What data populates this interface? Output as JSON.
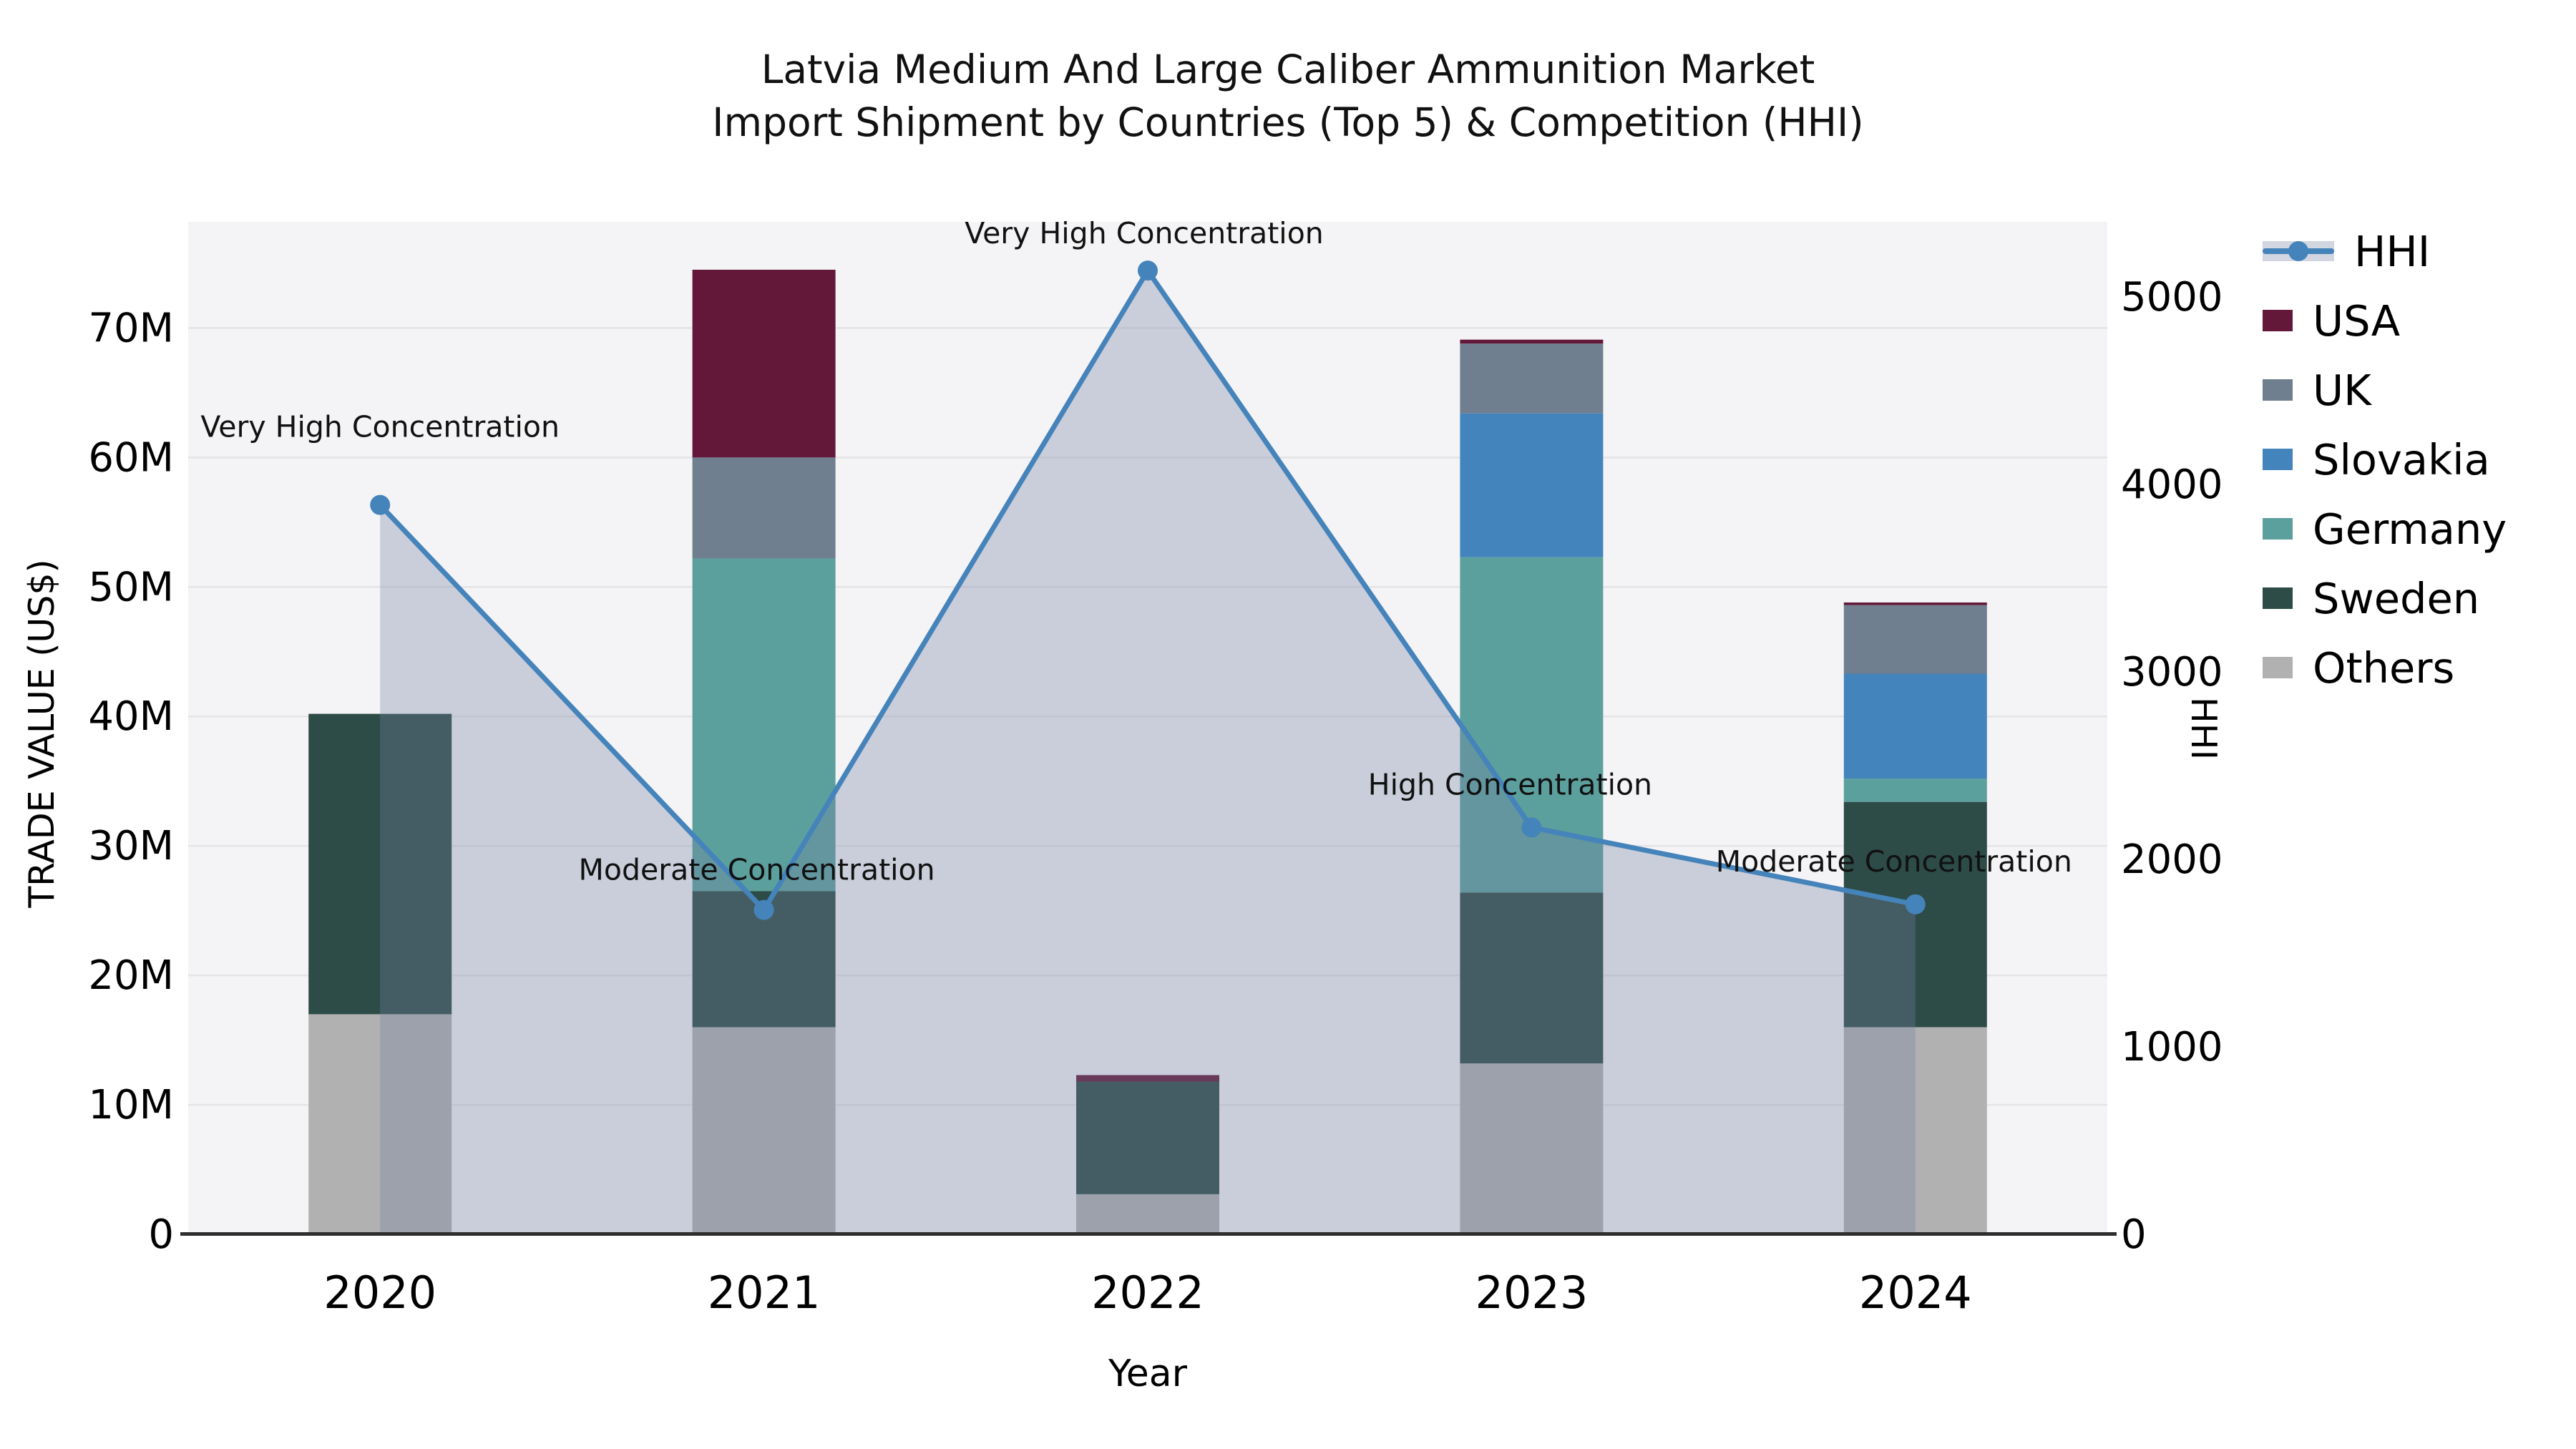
{
  "title": {
    "line1": "Latvia Medium And Large Caliber Ammunition Market",
    "line2": "Import Shipment by Countries (Top 5) & Competition (HHI)"
  },
  "axes": {
    "x_label": "Year",
    "y_left_label": "TRADE VALUE (US$)",
    "y_right_label": "HHI",
    "y_left_ticks": [
      "0",
      "10M",
      "20M",
      "30M",
      "40M",
      "50M",
      "60M",
      "70M"
    ],
    "y_right_ticks": [
      "0",
      "1000",
      "2000",
      "3000",
      "4000",
      "5000"
    ]
  },
  "legend": {
    "items": [
      {
        "label": "HHI",
        "type": "line",
        "color": "#4583bb"
      },
      {
        "label": "USA",
        "type": "patch",
        "color": "#641839"
      },
      {
        "label": "UK",
        "type": "patch",
        "color": "#6f7f90"
      },
      {
        "label": "Slovakia",
        "type": "patch",
        "color": "#4384bc"
      },
      {
        "label": "Germany",
        "type": "patch",
        "color": "#5ca09e"
      },
      {
        "label": "Sweden",
        "type": "patch",
        "color": "#2d4b47"
      },
      {
        "label": "Others",
        "type": "patch",
        "color": "#b0b1b0"
      }
    ]
  },
  "chart_data": {
    "type": "bar",
    "subtype": "stacked-bars-with-line",
    "title": "Latvia Medium And Large Caliber Ammunition Market Import Shipment by Countries (Top 5) & Competition (HHI)",
    "xlabel": "Year",
    "ylabel_left": "TRADE VALUE (US$)",
    "ylabel_right": "HHI",
    "categories": [
      "2020",
      "2021",
      "2022",
      "2023",
      "2024"
    ],
    "unit": "M US$",
    "series": [
      {
        "name": "Others",
        "color": "#b0b1b0",
        "values": [
          17.0,
          16.0,
          3.1,
          13.2,
          16.0
        ]
      },
      {
        "name": "Sweden",
        "color": "#2d4b47",
        "values": [
          23.2,
          10.5,
          8.7,
          13.2,
          17.4
        ]
      },
      {
        "name": "Germany",
        "color": "#5ca09e",
        "values": [
          0,
          25.7,
          0,
          25.9,
          1.8
        ]
      },
      {
        "name": "Slovakia",
        "color": "#4384bc",
        "values": [
          0,
          0,
          0,
          11.1,
          8.1
        ]
      },
      {
        "name": "UK",
        "color": "#6f7f90",
        "values": [
          0,
          7.8,
          0,
          5.4,
          5.3
        ]
      },
      {
        "name": "USA",
        "color": "#641839",
        "values": [
          0,
          14.5,
          0.5,
          0.3,
          0.2
        ]
      }
    ],
    "bar_totals": [
      40.2,
      74.5,
      12.3,
      69.1,
      48.8
    ],
    "line_series": {
      "name": "HHI",
      "color": "#4583bb",
      "area_fill": "rgba(114,132,161,0.33)",
      "values": [
        3890,
        1730,
        5140,
        2170,
        1760
      ]
    },
    "annotations": [
      {
        "text": "Very High Concentration",
        "x_index": 0
      },
      {
        "text": "Moderate Concentration",
        "x_index": 1
      },
      {
        "text": "Very High Concentration",
        "x_index": 2
      },
      {
        "text": "High Concentration",
        "x_index": 3
      },
      {
        "text": "Moderate Concentration",
        "x_index": 4
      }
    ],
    "y_left_axis": {
      "min": 0,
      "max": 78.2,
      "tick_step": 10,
      "tick_suffix": "M"
    },
    "y_right_axis": {
      "min": 0,
      "max": 5400,
      "tick_step": 1000
    },
    "grid": true,
    "legend_position": "right",
    "plot_background": "#f4f4f6"
  }
}
